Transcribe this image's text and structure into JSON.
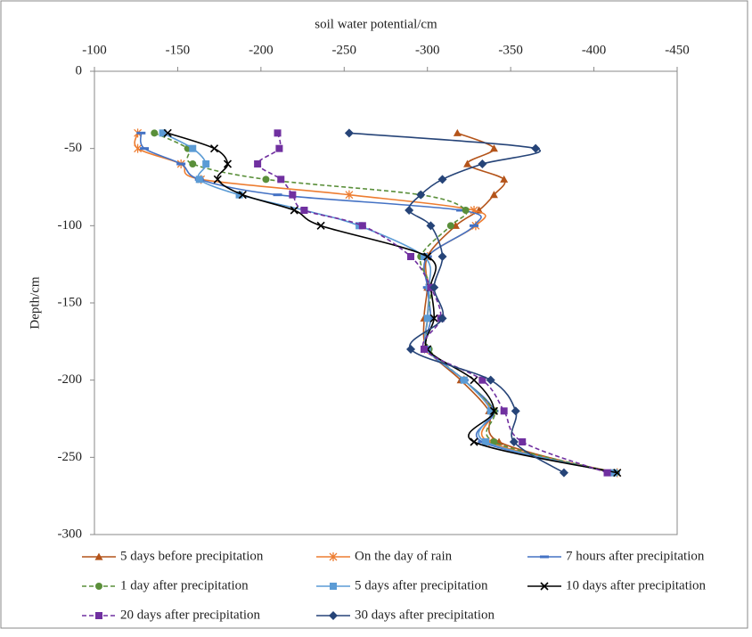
{
  "chart_data": {
    "type": "line",
    "x_label": "soil water potential/cm",
    "y_label": "Depth/cm",
    "xlim": [
      -100,
      -450
    ],
    "xticks": [
      -100,
      -150,
      -200,
      -250,
      -300,
      -350,
      -400,
      -450
    ],
    "ylim": [
      -300,
      0
    ],
    "yticks": [
      0,
      -50,
      -100,
      -150,
      -200,
      -250,
      -300
    ],
    "y": [
      -40,
      -50,
      -60,
      -70,
      -80,
      -90,
      -100,
      -120,
      -140,
      -160,
      -180,
      -200,
      -220,
      -240,
      -260
    ],
    "series": [
      {
        "name": "5 days before precipitation",
        "color": "#b4541a",
        "marker": "triangle",
        "dash": false,
        "x": [
          -318,
          -340,
          -324,
          -346,
          -340,
          -331,
          -317,
          -300,
          -300,
          -298,
          -300,
          -320,
          -337,
          -343,
          -410
        ]
      },
      {
        "name": "On the day of rain",
        "color": "#ed7d31",
        "marker": "asterisk",
        "dash": false,
        "x": [
          -126,
          -126,
          -152,
          -164,
          -253,
          -328,
          -329,
          -300,
          -301,
          -300,
          -300,
          -322,
          -339,
          -337,
          -414
        ]
      },
      {
        "name": "7 hours after precipitation",
        "color": "#4472c4",
        "marker": "dash",
        "dash": false,
        "x": [
          -128,
          -130,
          -152,
          -163,
          -210,
          -320,
          -328,
          -300,
          -300,
          -302,
          -300,
          -322,
          -340,
          -333,
          -413
        ]
      },
      {
        "name": "1 day after precipitation",
        "color": "#5a8f3a",
        "marker": "circle",
        "dash": true,
        "x": [
          -136,
          -156,
          -159,
          -203,
          -296,
          -323,
          -314,
          -296,
          -302,
          -300,
          -301,
          -322,
          -340,
          -340,
          -413
        ]
      },
      {
        "name": "5 days after precipitation",
        "color": "#5b9bd5",
        "marker": "square",
        "dash": false,
        "x": [
          -141,
          -159,
          -167,
          -163,
          -187,
          -226,
          -259,
          -298,
          -301,
          -300,
          -300,
          -322,
          -338,
          -335,
          -412
        ]
      },
      {
        "name": "10 days after precipitation",
        "color": "#000000",
        "marker": "cross",
        "dash": false,
        "x": [
          -144,
          -172,
          -180,
          -174,
          -189,
          -220,
          -236,
          -300,
          -302,
          -304,
          -300,
          -328,
          -340,
          -328,
          -414
        ]
      },
      {
        "name": "20 days after precipitation",
        "color": "#7030a0",
        "marker": "square",
        "dash": true,
        "x": [
          -210,
          -211,
          -198,
          -212,
          -219,
          -226,
          -261,
          -290,
          -302,
          -308,
          -298,
          -333,
          -346,
          -357,
          -408
        ]
      },
      {
        "name": "30 days after precipitation",
        "color": "#264478",
        "marker": "diamond",
        "dash": false,
        "x": [
          -253,
          -365,
          -333,
          -309,
          -296,
          -289,
          -302,
          -309,
          -304,
          -309,
          -290,
          -338,
          -353,
          -352,
          -382
        ]
      }
    ]
  }
}
